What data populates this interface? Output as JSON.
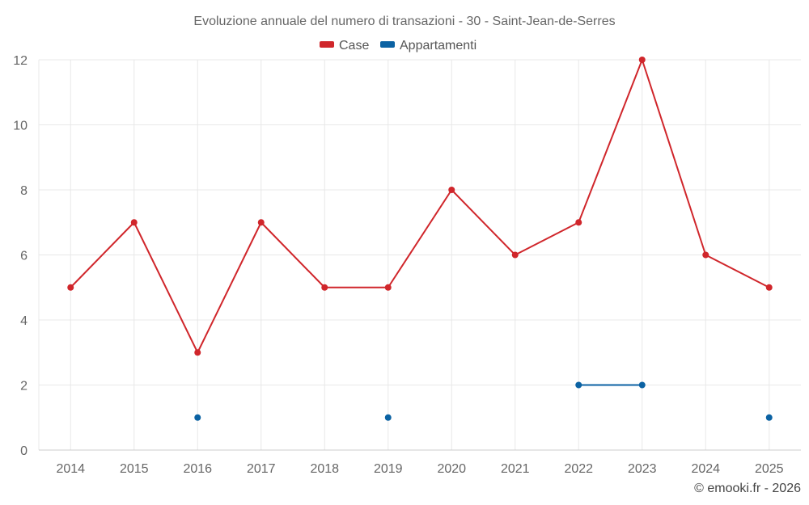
{
  "chart_data": {
    "type": "line",
    "title": "Evoluzione annuale del numero di transazioni - 30 - Saint-Jean-de-Serres",
    "categories": [
      "2014",
      "2015",
      "2016",
      "2017",
      "2018",
      "2019",
      "2020",
      "2021",
      "2022",
      "2023",
      "2024",
      "2025"
    ],
    "ylim": [
      0,
      12
    ],
    "yticks": [
      0,
      2,
      4,
      6,
      8,
      10,
      12
    ],
    "grid": true,
    "legend_position": "top-center",
    "series": [
      {
        "name": "Case",
        "color": "#d0262b",
        "values": [
          5,
          7,
          3,
          7,
          5,
          5,
          8,
          6,
          7,
          12,
          6,
          5
        ]
      },
      {
        "name": "Appartamenti",
        "color": "#0b62a3",
        "values": [
          null,
          null,
          1,
          null,
          null,
          1,
          null,
          null,
          2,
          2,
          null,
          1
        ]
      }
    ]
  },
  "credit": "© emooki.fr - 2026"
}
